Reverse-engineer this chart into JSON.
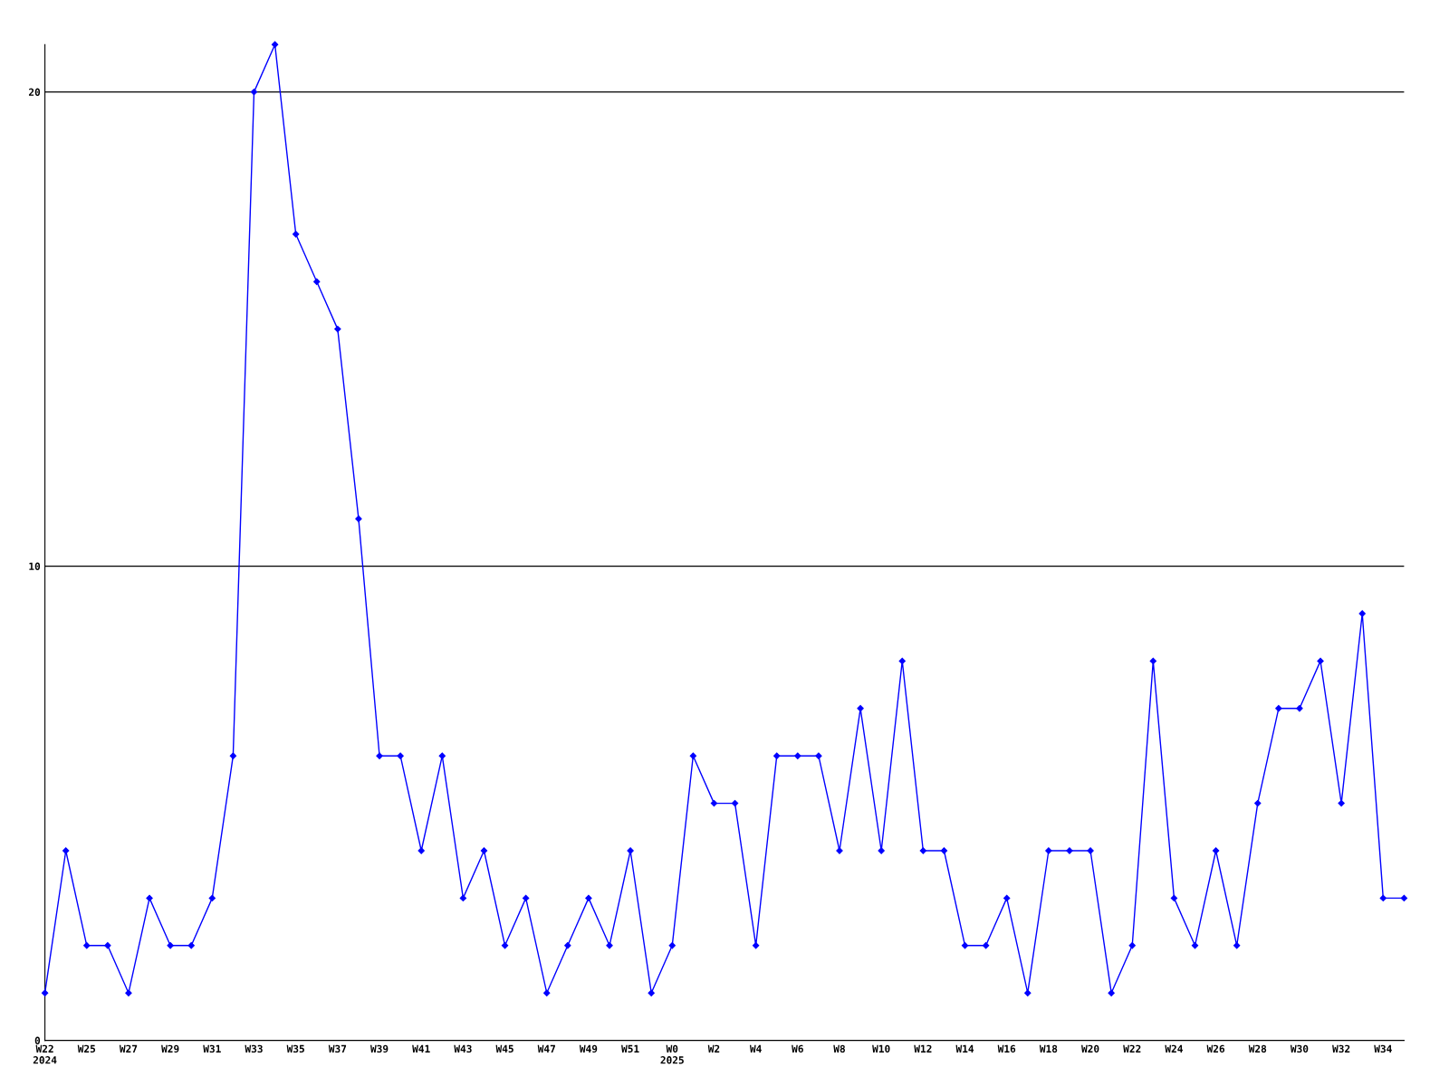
{
  "chart_data": {
    "type": "line",
    "categories": [
      "W22\n2024",
      null,
      "W25",
      null,
      "W27",
      null,
      "W29",
      null,
      "W31",
      null,
      "W33",
      null,
      "W35",
      null,
      "W37",
      null,
      "W39",
      null,
      "W41",
      null,
      "W43",
      null,
      "W45",
      null,
      "W47",
      null,
      "W49",
      null,
      "W51",
      null,
      "W0\n2025",
      null,
      "W2",
      null,
      "W4",
      null,
      "W6",
      null,
      "W8",
      null,
      "W10",
      null,
      "W12",
      null,
      "W14",
      null,
      "W16",
      null,
      "W18",
      null,
      "W20",
      null,
      "W22",
      null,
      "W24",
      null,
      "W26",
      null,
      "W28",
      null,
      "W30",
      null,
      "W32",
      null,
      "W34",
      null
    ],
    "series": [
      {
        "color": "#0000ff",
        "values": [
          1,
          4,
          2,
          2,
          1,
          3,
          2,
          2,
          3,
          6,
          20,
          21,
          17,
          16,
          15,
          11,
          6,
          6,
          4,
          6,
          3,
          4,
          2,
          3,
          1,
          2,
          3,
          2,
          4,
          1,
          2,
          6,
          5,
          5,
          2,
          6,
          6,
          6,
          4,
          7,
          4,
          8,
          4,
          4,
          2,
          2,
          3,
          1,
          4,
          4,
          4,
          1,
          2,
          8,
          3,
          2,
          4,
          2,
          5,
          7,
          7,
          8,
          5,
          9,
          3,
          3
        ]
      }
    ],
    "ylim": [
      0,
      21
    ],
    "yticks": [
      0,
      10,
      20
    ],
    "grid": "y",
    "legend": false,
    "marker": "diamond",
    "line_style": "solid"
  }
}
